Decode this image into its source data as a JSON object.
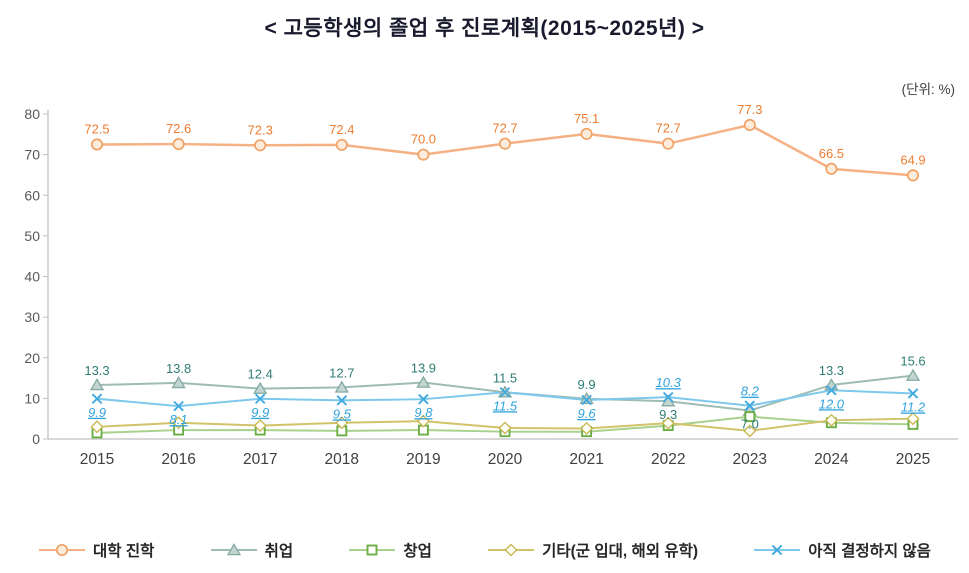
{
  "chart": {
    "title": "<  고등학생의  졸업  후  진로계획(2015~2025년)  >",
    "unit_label": "(단위:  %)"
  },
  "chart_data": {
    "type": "line",
    "title": "고등학생의 졸업 후 진로계획(2015~2025년)",
    "unit": "%",
    "categories": [
      "2015",
      "2016",
      "2017",
      "2018",
      "2019",
      "2020",
      "2021",
      "2022",
      "2023",
      "2024",
      "2025"
    ],
    "ylim": [
      0,
      80
    ],
    "yticks": [
      0,
      10,
      20,
      30,
      40,
      50,
      60,
      70,
      80
    ],
    "grid": false,
    "legend_position": "bottom",
    "series": [
      {
        "name": "대학 진학",
        "marker": "circle",
        "line_color": "#F5B183",
        "marker_stroke": "#F0A265",
        "marker_fill": "#FDEBDC",
        "label_color": "#ED7D31",
        "label_italic": false,
        "label_underline": false,
        "show_labels": true,
        "values": [
          72.5,
          72.6,
          72.3,
          72.4,
          70.0,
          72.7,
          75.1,
          72.7,
          77.3,
          66.5,
          64.9
        ]
      },
      {
        "name": "취업",
        "marker": "triangle",
        "line_color": "#9DBCB4",
        "marker_stroke": "#84A9A2",
        "marker_fill": "#C2D5D0",
        "label_color": "#2F7D74",
        "label_italic": false,
        "label_underline": false,
        "show_labels": true,
        "values": [
          13.3,
          13.8,
          12.4,
          12.7,
          13.9,
          11.5,
          9.9,
          9.3,
          7.0,
          13.3,
          15.6
        ]
      },
      {
        "name": "창업",
        "marker": "square",
        "line_color": "#A9D18E",
        "marker_stroke": "#6AAE44",
        "marker_fill": "#FFFFFF",
        "label_color": "#538135",
        "label_italic": false,
        "label_underline": false,
        "show_labels": false,
        "values": [
          1.5,
          2.2,
          2.2,
          2.0,
          2.2,
          1.8,
          1.8,
          3.3,
          5.5,
          4.0,
          3.6
        ]
      },
      {
        "name": "기타(군 입대, 해외 유학)",
        "marker": "diamond",
        "line_color": "#D2C269",
        "marker_stroke": "#C6B44D",
        "marker_fill": "#FFFEF5",
        "label_color": "#BF8F00",
        "label_italic": false,
        "label_underline": false,
        "show_labels": false,
        "values": [
          3.0,
          4.0,
          3.3,
          4.0,
          4.4,
          2.7,
          2.6,
          3.9,
          2.0,
          4.6,
          5.0
        ]
      },
      {
        "name": "아직 결정하지 않음",
        "marker": "x",
        "line_color": "#7EC8EC",
        "marker_stroke": "#3FA9E0",
        "marker_fill": "none",
        "label_color": "#31A3DC",
        "label_italic": true,
        "label_underline": true,
        "show_labels": true,
        "values": [
          9.9,
          8.1,
          9.9,
          9.5,
          9.8,
          11.5,
          9.6,
          10.3,
          8.2,
          12.0,
          11.2
        ]
      }
    ]
  }
}
